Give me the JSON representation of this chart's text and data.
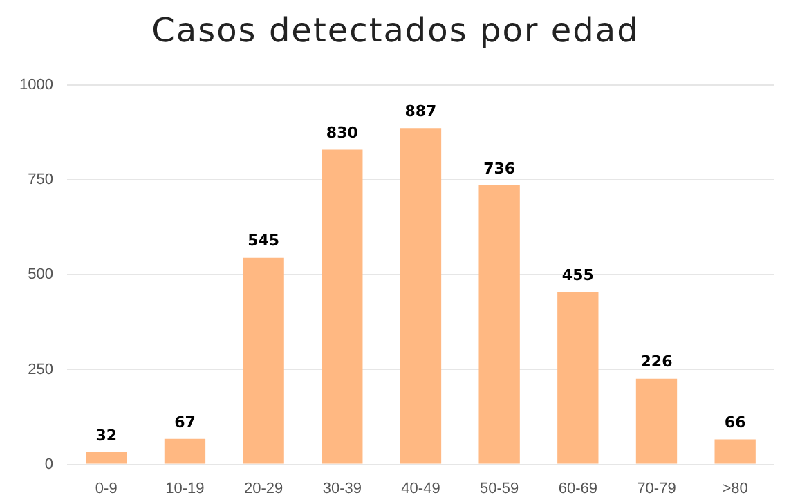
{
  "chart_data": {
    "type": "bar",
    "title": "Casos detectados por edad",
    "categories": [
      "0-9",
      "10-19",
      "20-29",
      "30-39",
      "40-49",
      "50-59",
      "60-69",
      "70-79",
      ">80"
    ],
    "values": [
      32,
      67,
      545,
      830,
      887,
      736,
      455,
      226,
      66
    ],
    "color": "#ffb882",
    "ylim": [
      0,
      1000
    ],
    "yticks": [
      0,
      250,
      500,
      750,
      1000
    ],
    "grid": "y",
    "data_labels": true,
    "legend": false
  }
}
